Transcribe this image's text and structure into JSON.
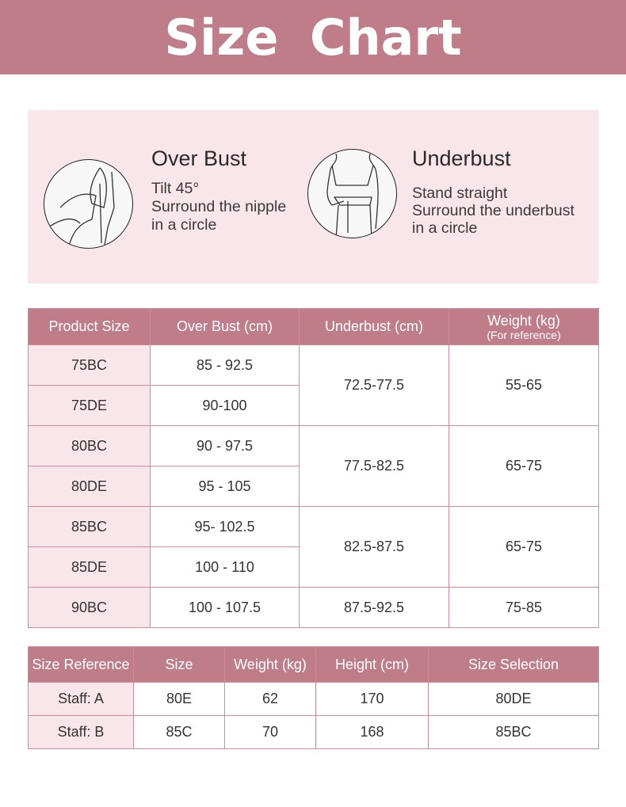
{
  "title": "Size  Chart",
  "colors": {
    "accent": "#bf7d89",
    "light": "#f8e6ea"
  },
  "guide": {
    "overbust": {
      "icon": "overbust-measure-illustration",
      "title": "Over Bust",
      "lines": [
        "Tilt 45°",
        "Surround the nipple",
        "in a circle"
      ]
    },
    "underbust": {
      "icon": "underbust-measure-illustration",
      "title": "Underbust",
      "lines": [
        "Stand straight",
        "Surround the underbust",
        "in a circle"
      ]
    }
  },
  "size_table": {
    "headers": [
      "Product Size",
      "Over Bust (cm)",
      "Underbust (cm)",
      "Weight (kg)"
    ],
    "weight_note": "(For reference)",
    "rows": [
      {
        "size": "75BC",
        "overbust": "85 - 92.5"
      },
      {
        "size": "75DE",
        "overbust": "90-100"
      },
      {
        "size": "80BC",
        "overbust": "90 - 97.5"
      },
      {
        "size": "80DE",
        "overbust": "95 - 105"
      },
      {
        "size": "85BC",
        "overbust": "95- 102.5"
      },
      {
        "size": "85DE",
        "overbust": "100 - 110"
      },
      {
        "size": "90BC",
        "overbust": "100 - 107.5"
      }
    ],
    "groups": [
      {
        "underbust": "72.5-77.5",
        "weight": "55-65"
      },
      {
        "underbust": "77.5-82.5",
        "weight": "65-75"
      },
      {
        "underbust": "82.5-87.5",
        "weight": "65-75"
      },
      {
        "underbust": "87.5-92.5",
        "weight": "75-85"
      }
    ]
  },
  "reference_table": {
    "headers": [
      "Size Reference",
      "Size",
      "Weight (kg)",
      "Height (cm)",
      "Size Selection"
    ],
    "rows": [
      [
        "Staff: A",
        "80E",
        "62",
        "170",
        "80DE"
      ],
      [
        "Staff: B",
        "85C",
        "70",
        "168",
        "85BC"
      ]
    ]
  }
}
